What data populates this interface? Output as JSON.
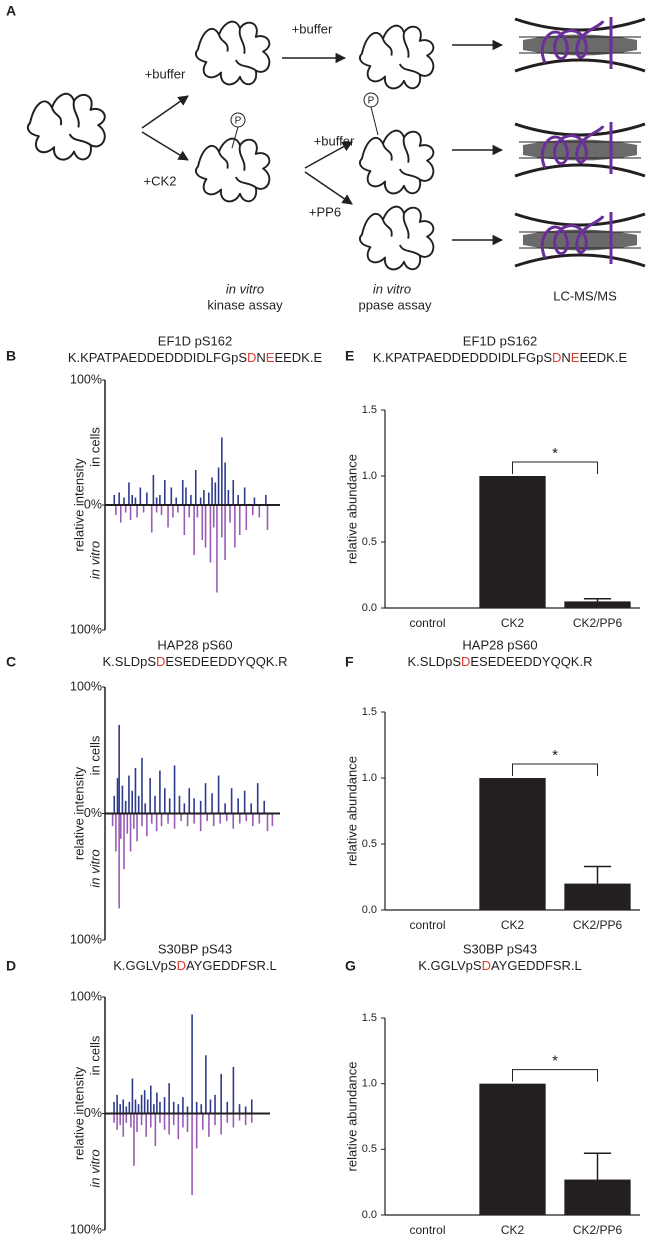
{
  "panel_a": {
    "letter": "A",
    "buffer_top": "+buffer",
    "ck2": "+CK2",
    "buffer_right_top": "+buffer",
    "buffer_right_mid": "+buffer",
    "pp6": "+PP6",
    "phospho_1": "P",
    "phospho_2": "P",
    "kinase_italic": "in vitro",
    "kinase": "kinase assay",
    "ppase_italic": "in vitro",
    "ppase": "ppase assay",
    "lcms": "LC-MS/MS"
  },
  "chart_data": [
    {
      "type": "mirror",
      "panel": "B",
      "title": "EF1D pS162",
      "peptide": [
        {
          "text": "K.KPATPAEDDEDDDIDLFGpS",
          "color": "#231f20"
        },
        {
          "text": "D",
          "color": "#e03a2f"
        },
        {
          "text": "N",
          "color": "#231f20"
        },
        {
          "text": "E",
          "color": "#e03a2f"
        },
        {
          "text": "EEDK.E",
          "color": "#231f20"
        }
      ],
      "ylabel": "relative intensity",
      "xlim": [
        0,
        100
      ],
      "ylim": [
        -100,
        100
      ],
      "yticks": [
        {
          "value": 100,
          "label": "100%"
        },
        {
          "value": 0,
          "label": "0%"
        },
        {
          "value": -100,
          "label": "100%"
        }
      ],
      "series": [
        {
          "name": "in cells",
          "color": "#2e3a8c",
          "x": [
            2,
            5,
            8,
            11,
            13,
            15,
            18,
            22,
            26,
            28,
            30,
            33,
            37,
            40,
            44,
            46,
            49,
            52,
            55,
            57,
            60,
            62,
            64,
            66,
            68,
            70,
            72,
            75,
            78,
            82,
            88,
            95
          ],
          "values": [
            8,
            10,
            6,
            18,
            8,
            6,
            14,
            10,
            24,
            6,
            8,
            20,
            14,
            6,
            20,
            14,
            8,
            28,
            6,
            12,
            10,
            22,
            18,
            30,
            54,
            34,
            12,
            20,
            8,
            14,
            6,
            8
          ]
        },
        {
          "name": "in vitro",
          "color": "#9a5bb5",
          "x": [
            3,
            6,
            9,
            12,
            16,
            20,
            25,
            28,
            31,
            35,
            38,
            41,
            45,
            48,
            51,
            53,
            56,
            58,
            61,
            63,
            65,
            68,
            70,
            73,
            76,
            79,
            83,
            87,
            91,
            96
          ],
          "values": [
            -8,
            -14,
            -6,
            -12,
            -10,
            -6,
            -22,
            -6,
            -8,
            -18,
            -10,
            -6,
            -24,
            -10,
            -40,
            -10,
            -28,
            -34,
            -46,
            -18,
            -70,
            -26,
            -44,
            -14,
            -34,
            -24,
            -20,
            -8,
            -10,
            -20
          ]
        }
      ]
    },
    {
      "type": "mirror",
      "panel": "C",
      "title": "HAP28 pS60",
      "peptide": [
        {
          "text": "K.SLDpS",
          "color": "#231f20"
        },
        {
          "text": "D",
          "color": "#e03a2f"
        },
        {
          "text": "ESEDEEDDYQQK.R",
          "color": "#231f20"
        }
      ],
      "ylabel": "relative intensity",
      "xlim": [
        0,
        100
      ],
      "ylim": [
        -100,
        100
      ],
      "yticks": [
        {
          "value": 100,
          "label": "100%"
        },
        {
          "value": 0,
          "label": "0%"
        },
        {
          "value": -100,
          "label": "100%"
        }
      ],
      "series": [
        {
          "name": "in cells",
          "color": "#2e3a8c",
          "x": [
            2,
            4,
            5,
            7,
            9,
            11,
            13,
            15,
            17,
            19,
            21,
            24,
            27,
            30,
            33,
            36,
            39,
            42,
            45,
            48,
            51,
            55,
            58,
            62,
            66,
            70,
            74,
            78,
            82,
            86,
            90,
            94
          ],
          "values": [
            14,
            28,
            70,
            22,
            10,
            30,
            18,
            36,
            14,
            44,
            8,
            28,
            14,
            34,
            20,
            12,
            38,
            14,
            8,
            20,
            12,
            10,
            24,
            16,
            30,
            8,
            20,
            12,
            18,
            8,
            24,
            10
          ]
        },
        {
          "name": "in vitro",
          "color": "#9a5bb5",
          "x": [
            1,
            3,
            5,
            6,
            8,
            10,
            12,
            14,
            16,
            19,
            22,
            25,
            28,
            31,
            35,
            39,
            43,
            47,
            51,
            55,
            59,
            63,
            67,
            71,
            75,
            79,
            83,
            87,
            91,
            96,
            99
          ],
          "values": [
            -10,
            -30,
            -75,
            -20,
            -44,
            -16,
            -30,
            -12,
            -22,
            -10,
            -18,
            -8,
            -14,
            -10,
            -8,
            -12,
            -6,
            -10,
            -8,
            -14,
            -6,
            -10,
            -8,
            -6,
            -12,
            -8,
            -6,
            -10,
            -8,
            -14,
            -10
          ]
        }
      ]
    },
    {
      "type": "mirror",
      "panel": "D",
      "title": "S30BP pS43",
      "peptide": [
        {
          "text": "K.GGLVpS",
          "color": "#231f20"
        },
        {
          "text": "D",
          "color": "#e03a2f"
        },
        {
          "text": "AYGEDDFSR.L",
          "color": "#231f20"
        }
      ],
      "ylabel": "relative intensity",
      "xlim": [
        0,
        100
      ],
      "ylim": [
        -100,
        100
      ],
      "yticks": [
        {
          "value": 100,
          "label": "100%"
        },
        {
          "value": 0,
          "label": "0%"
        },
        {
          "value": -100,
          "label": "100%"
        }
      ],
      "series": [
        {
          "name": "in cells",
          "color": "#2e3a8c",
          "x": [
            2,
            4,
            6,
            8,
            10,
            12,
            14,
            16,
            18,
            20,
            22,
            24,
            26,
            28,
            30,
            32,
            35,
            38,
            41,
            44,
            47,
            50,
            53,
            56,
            59,
            62,
            65,
            68,
            72,
            76,
            80,
            84,
            88,
            92
          ],
          "values": [
            10,
            16,
            8,
            12,
            6,
            10,
            30,
            12,
            8,
            16,
            20,
            12,
            24,
            8,
            18,
            10,
            14,
            26,
            10,
            8,
            14,
            6,
            85,
            10,
            8,
            50,
            12,
            16,
            34,
            10,
            40,
            8,
            6,
            12
          ]
        },
        {
          "name": "in vitro",
          "color": "#9a5bb5",
          "x": [
            2,
            4,
            6,
            8,
            10,
            13,
            15,
            17,
            20,
            23,
            26,
            29,
            32,
            35,
            38,
            41,
            44,
            47,
            50,
            53,
            56,
            60,
            64,
            68,
            72,
            76,
            80,
            84,
            88,
            92
          ],
          "values": [
            -8,
            -14,
            -10,
            -20,
            -8,
            -12,
            -45,
            -16,
            -10,
            -20,
            -12,
            -28,
            -8,
            -14,
            -18,
            -10,
            -22,
            -12,
            -16,
            -70,
            -30,
            -14,
            -20,
            -10,
            -18,
            -8,
            -12,
            -6,
            -10,
            -8
          ]
        }
      ]
    },
    {
      "type": "bar",
      "panel": "E",
      "title": "EF1D pS162",
      "peptide": [
        {
          "text": "K.KPATPAEDDEDDDIDLFGpS",
          "color": "#231f20"
        },
        {
          "text": "D",
          "color": "#e03a2f"
        },
        {
          "text": "N",
          "color": "#231f20"
        },
        {
          "text": "E",
          "color": "#e03a2f"
        },
        {
          "text": "EEDK.E",
          "color": "#231f20"
        }
      ],
      "ylabel": "relative abundance",
      "categories": [
        "control",
        "CK2",
        "CK2/PP6"
      ],
      "values": [
        0,
        1.0,
        0.05
      ],
      "errors": [
        null,
        null,
        0.02
      ],
      "color": "#231f20",
      "ylim": [
        0,
        1.5
      ],
      "yticks": [
        {
          "value": 0,
          "label": "0.0"
        },
        {
          "value": 0.5,
          "label": "0.5"
        },
        {
          "value": 1,
          "label": "1.0"
        },
        {
          "value": 1.5,
          "label": "1.5"
        }
      ],
      "annotation": "*"
    },
    {
      "type": "bar",
      "panel": "F",
      "title": "HAP28 pS60",
      "peptide": [
        {
          "text": "K.SLDpS",
          "color": "#231f20"
        },
        {
          "text": "D",
          "color": "#e03a2f"
        },
        {
          "text": "ESEDEEDDYQQK.R",
          "color": "#231f20"
        }
      ],
      "ylabel": "relative abundance",
      "categories": [
        "control",
        "CK2",
        "CK2/PP6"
      ],
      "values": [
        0,
        1.0,
        0.2
      ],
      "errors": [
        null,
        null,
        0.13
      ],
      "color": "#231f20",
      "ylim": [
        0,
        1.5
      ],
      "yticks": [
        {
          "value": 0,
          "label": "0.0"
        },
        {
          "value": 0.5,
          "label": "0.5"
        },
        {
          "value": 1,
          "label": "1.0"
        },
        {
          "value": 1.5,
          "label": "1.5"
        }
      ],
      "annotation": "*"
    },
    {
      "type": "bar",
      "panel": "G",
      "title": "S30BP pS43",
      "peptide": [
        {
          "text": "K.GGLVpS",
          "color": "#231f20"
        },
        {
          "text": "D",
          "color": "#e03a2f"
        },
        {
          "text": "AYGEDDFSR.L",
          "color": "#231f20"
        }
      ],
      "ylabel": "relative abundance",
      "categories": [
        "control",
        "CK2",
        "CK2/PP6"
      ],
      "values": [
        0,
        1.0,
        0.27
      ],
      "errors": [
        null,
        null,
        0.2
      ],
      "color": "#231f20",
      "ylim": [
        0,
        1.5
      ],
      "yticks": [
        {
          "value": 0,
          "label": "0.0"
        },
        {
          "value": 0.5,
          "label": "0.5"
        },
        {
          "value": 1,
          "label": "1.0"
        },
        {
          "value": 1.5,
          "label": "1.5"
        }
      ],
      "annotation": "*"
    }
  ]
}
